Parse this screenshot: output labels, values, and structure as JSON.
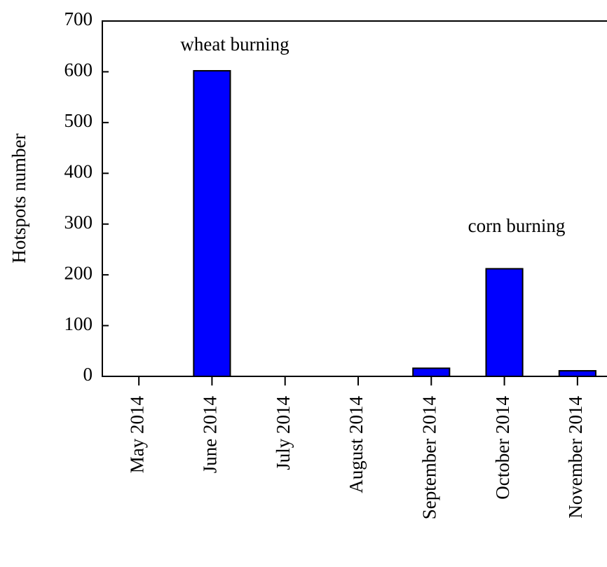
{
  "chart_data": {
    "type": "bar",
    "y_label": "Hotspots number",
    "annotations": [
      "wheat burning",
      "corn burning"
    ],
    "categories": [
      "May 2014",
      "June 2014",
      "July 2014",
      "August 2014",
      "September 2014",
      "October 2014",
      "November 2014"
    ],
    "values": [
      0,
      602,
      0,
      0,
      16,
      212,
      11
    ],
    "color": "#0000ff",
    "ylim": [
      0,
      700
    ],
    "yticks": [
      0,
      100,
      200,
      300,
      400,
      500,
      600,
      700
    ],
    "grid": false
  }
}
